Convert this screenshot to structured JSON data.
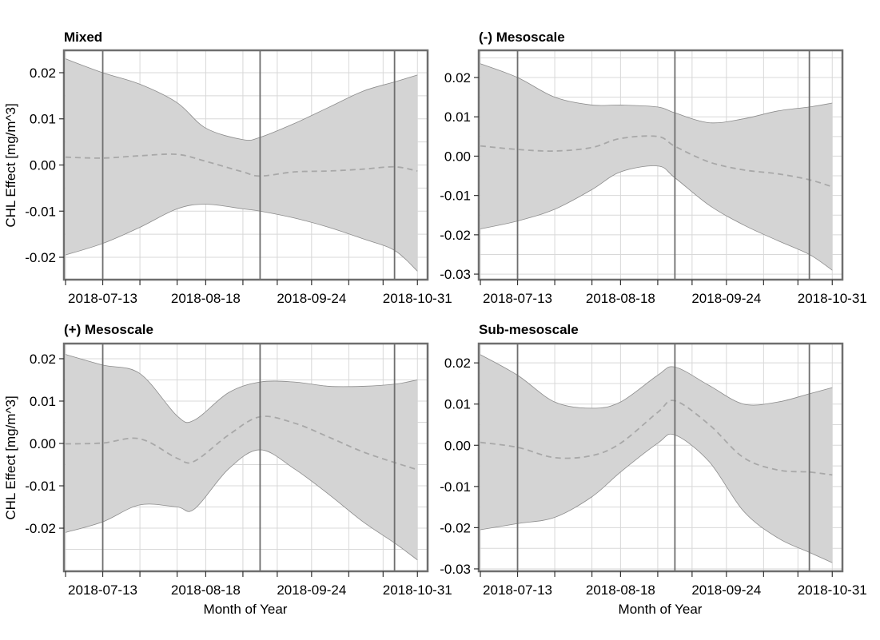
{
  "chart_data": [
    {
      "type": "area",
      "title": "Mixed",
      "xlabel": "",
      "ylabel": "CHL Effect [mg/m^3]",
      "ylim": [
        -0.0245,
        0.0245
      ],
      "yticks": [
        0.02,
        0.01,
        0.0,
        -0.01,
        -0.02
      ],
      "ytick_labels": [
        "0.02",
        "0.01",
        "0.00",
        "-0.01",
        "-0.02"
      ],
      "vlines": [
        "2018-07-13",
        "2018-09-06",
        "2018-10-23"
      ],
      "series": [
        {
          "x": [
            "2018-06-30",
            "2018-07-13",
            "2018-07-26",
            "2018-08-08",
            "2018-08-18",
            "2018-08-31",
            "2018-09-06",
            "2018-09-18",
            "2018-09-30",
            "2018-10-12",
            "2018-10-23",
            "2018-10-31"
          ],
          "mean": [
            0.0017,
            0.0015,
            0.002,
            0.0023,
            0.0008,
            -0.0015,
            -0.0024,
            -0.0015,
            -0.0013,
            -0.0009,
            -0.0004,
            -0.0013
          ],
          "upper": [
            0.023,
            0.02,
            0.0175,
            0.0135,
            0.008,
            0.0055,
            0.006,
            0.009,
            0.0125,
            0.016,
            0.018,
            0.0195
          ],
          "lower": [
            -0.0195,
            -0.017,
            -0.0135,
            -0.0095,
            -0.0085,
            -0.0095,
            -0.01,
            -0.0115,
            -0.0135,
            -0.016,
            -0.0185,
            -0.023
          ]
        }
      ]
    },
    {
      "type": "area",
      "title": "(-) Mesoscale",
      "xlabel": "",
      "ylabel": "",
      "ylim": [
        -0.031,
        0.0265
      ],
      "yticks": [
        0.02,
        0.01,
        0.0,
        -0.01,
        -0.02,
        -0.03
      ],
      "ytick_labels": [
        "0.02",
        "0.01",
        "0.00",
        "-0.01",
        "-0.02",
        "-0.03"
      ],
      "vlines": [
        "2018-07-13",
        "2018-09-06",
        "2018-10-23"
      ],
      "series": [
        {
          "x": [
            "2018-06-30",
            "2018-07-13",
            "2018-07-26",
            "2018-08-08",
            "2018-08-18",
            "2018-08-31",
            "2018-09-06",
            "2018-09-18",
            "2018-09-30",
            "2018-10-12",
            "2018-10-23",
            "2018-10-31"
          ],
          "mean": [
            0.0026,
            0.0017,
            0.0013,
            0.0022,
            0.0045,
            0.005,
            0.0025,
            -0.0015,
            -0.0035,
            -0.0045,
            -0.006,
            -0.0078
          ],
          "upper": [
            0.0235,
            0.02,
            0.015,
            0.013,
            0.013,
            0.0125,
            0.011,
            0.0085,
            0.0095,
            0.0115,
            0.0125,
            0.0135
          ],
          "lower": [
            -0.0185,
            -0.0165,
            -0.0135,
            -0.0085,
            -0.004,
            -0.0025,
            -0.0055,
            -0.0125,
            -0.0175,
            -0.0215,
            -0.025,
            -0.029
          ]
        }
      ]
    },
    {
      "type": "area",
      "title": "(+) Mesoscale",
      "xlabel": "Month of Year",
      "ylabel": "CHL Effect [mg/m^3]",
      "ylim": [
        -0.0298,
        0.0232
      ],
      "yticks": [
        0.02,
        0.01,
        0.0,
        -0.01,
        -0.02
      ],
      "ytick_labels": [
        "0.02",
        "0.01",
        "0.00",
        "-0.01",
        "-0.02"
      ],
      "vlines": [
        "2018-07-13",
        "2018-09-06",
        "2018-10-23"
      ],
      "series": [
        {
          "x": [
            "2018-06-30",
            "2018-07-13",
            "2018-07-26",
            "2018-08-08",
            "2018-08-14",
            "2018-08-26",
            "2018-09-06",
            "2018-09-18",
            "2018-09-30",
            "2018-10-12",
            "2018-10-23",
            "2018-10-31"
          ],
          "mean": [
            -0.0001,
            0.0001,
            0.0011,
            -0.0035,
            -0.0042,
            0.002,
            0.0063,
            0.0048,
            0.0015,
            -0.002,
            -0.0045,
            -0.0062
          ],
          "upper": [
            0.021,
            0.0185,
            0.0165,
            0.0065,
            0.0055,
            0.012,
            0.0145,
            0.0145,
            0.0135,
            0.0135,
            0.014,
            0.015
          ],
          "lower": [
            -0.021,
            -0.0185,
            -0.0145,
            -0.015,
            -0.0155,
            -0.006,
            -0.0015,
            -0.006,
            -0.012,
            -0.0185,
            -0.0235,
            -0.0275
          ]
        }
      ]
    },
    {
      "type": "area",
      "title": "Sub-mesoscale",
      "xlabel": "Month of Year",
      "ylabel": "",
      "ylim": [
        -0.0302,
        0.0243
      ],
      "yticks": [
        0.02,
        0.01,
        0.0,
        -0.01,
        -0.02,
        -0.03
      ],
      "ytick_labels": [
        "0.02",
        "0.01",
        "0.00",
        "-0.01",
        "-0.02",
        "-0.03"
      ],
      "vlines": [
        "2018-07-13",
        "2018-09-06",
        "2018-10-23"
      ],
      "series": [
        {
          "x": [
            "2018-06-30",
            "2018-07-13",
            "2018-07-26",
            "2018-08-08",
            "2018-08-18",
            "2018-08-31",
            "2018-09-06",
            "2018-09-18",
            "2018-09-30",
            "2018-10-12",
            "2018-10-23",
            "2018-10-31"
          ],
          "mean": [
            0.0007,
            -0.0005,
            -0.003,
            -0.0025,
            0.0005,
            0.008,
            0.0108,
            0.005,
            -0.003,
            -0.006,
            -0.0065,
            -0.0072
          ],
          "upper": [
            0.022,
            0.017,
            0.0105,
            0.009,
            0.0105,
            0.017,
            0.019,
            0.0145,
            0.01,
            0.0105,
            0.0125,
            0.014
          ],
          "lower": [
            -0.0205,
            -0.019,
            -0.0175,
            -0.0125,
            -0.0065,
            0.0005,
            0.0025,
            -0.004,
            -0.016,
            -0.0225,
            -0.026,
            -0.0285
          ]
        }
      ]
    }
  ],
  "x_axis": {
    "range": [
      "2018-06-30",
      "2018-11-03"
    ],
    "tick_labels": [
      "2018-07-13",
      "2018-08-18",
      "2018-09-24",
      "2018-10-31"
    ],
    "minor_ticks": [
      "2018-06-30",
      "2018-07-13",
      "2018-07-26",
      "2018-08-08",
      "2018-08-18",
      "2018-08-31",
      "2018-09-12",
      "2018-09-24",
      "2018-10-07",
      "2018-10-19",
      "2018-10-31"
    ]
  },
  "colors": {
    "ribbon": "#d4d4d4",
    "ribbon_edge": "#8c8c8c",
    "mean_line": "#a8a8a8",
    "vline": "#6e6e6e",
    "frame": "#6e6e6e",
    "grid": "#d8d8d8"
  }
}
